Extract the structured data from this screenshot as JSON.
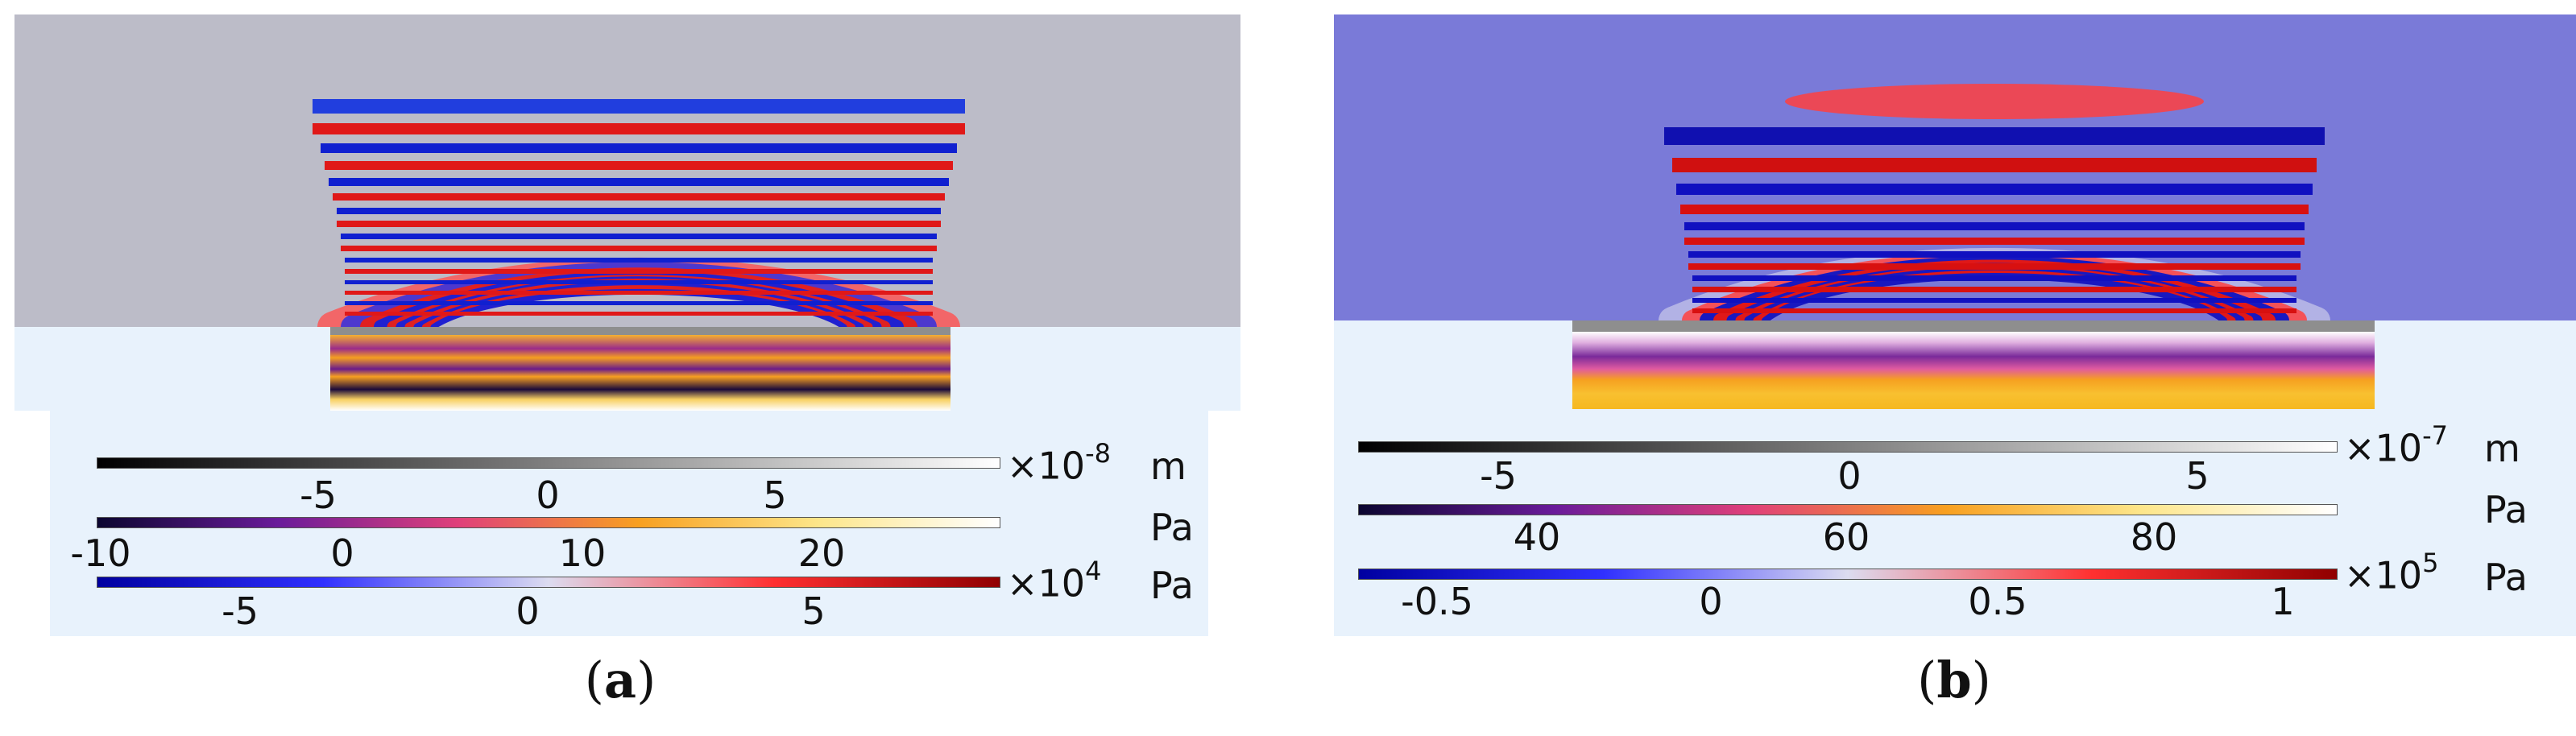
{
  "panels": [
    {
      "id": "a",
      "caption_letter": "a",
      "scales": [
        {
          "name": "displacement",
          "multiplier_base": "×10",
          "multiplier_exp": "-8",
          "unit": "m",
          "ticks": [
            "-5",
            "0",
            "5"
          ],
          "colors": [
            "#000000",
            "#ffffff"
          ]
        },
        {
          "name": "solid-pressure",
          "multiplier_base": "",
          "multiplier_exp": "",
          "unit": "Pa",
          "ticks": [
            "-10",
            "0",
            "10",
            "20"
          ],
          "colors": [
            "#0b0630",
            "#6a1b9a",
            "#e0407a",
            "#f8a020",
            "#fde68a",
            "#ffffff"
          ]
        },
        {
          "name": "acoustic-pressure",
          "multiplier_base": "×10",
          "multiplier_exp": "4",
          "unit": "Pa",
          "ticks": [
            "-5",
            "0",
            "5"
          ],
          "colors": [
            "#0000a0",
            "#3030ff",
            "#dcdcf0",
            "#ff3030",
            "#900000"
          ]
        }
      ]
    },
    {
      "id": "b",
      "caption_letter": "b",
      "scales": [
        {
          "name": "displacement",
          "multiplier_base": "×10",
          "multiplier_exp": "-7",
          "unit": "m",
          "ticks": [
            "-5",
            "0",
            "5"
          ],
          "colors": [
            "#000000",
            "#ffffff"
          ]
        },
        {
          "name": "solid-pressure",
          "multiplier_base": "",
          "multiplier_exp": "",
          "unit": "Pa",
          "ticks": [
            "40",
            "60",
            "80"
          ],
          "colors": [
            "#0b0630",
            "#6a1b9a",
            "#e0407a",
            "#f8a020",
            "#fde68a",
            "#ffffff"
          ]
        },
        {
          "name": "acoustic-pressure",
          "multiplier_base": "×10",
          "multiplier_exp": "5",
          "unit": "Pa",
          "ticks": [
            "-0.5",
            "0",
            "0.5",
            "1"
          ],
          "colors": [
            "#0000a0",
            "#3030ff",
            "#dcdcf0",
            "#ff3030",
            "#900000"
          ]
        }
      ]
    }
  ]
}
